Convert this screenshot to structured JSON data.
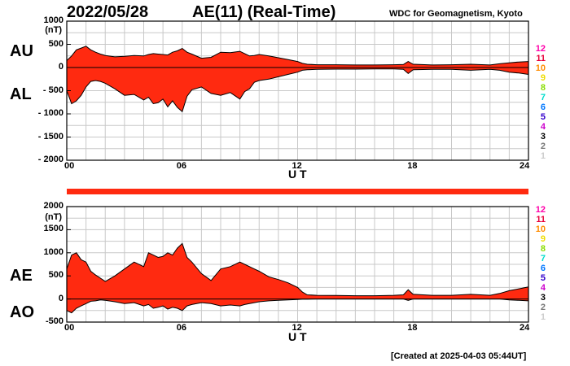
{
  "header": {
    "date": "2022/05/28",
    "title": "AE(11) (Real-Time)",
    "source": "WDC for Geomagnetism, Kyoto"
  },
  "footer": {
    "created": "[Created at 2025-04-03 05:44UT]"
  },
  "colors": {
    "fill": "#ff2a10",
    "line": "#000000",
    "grid": "#c8c8c8",
    "status_bar": "#ff2a10"
  },
  "legend": [
    {
      "label": "12",
      "color": "#ff00aa"
    },
    {
      "label": "11",
      "color": "#e8003a"
    },
    {
      "label": "10",
      "color": "#ff8c00"
    },
    {
      "label": "9",
      "color": "#eedd00"
    },
    {
      "label": "8",
      "color": "#88dd00"
    },
    {
      "label": "7",
      "color": "#00ddcc"
    },
    {
      "label": "6",
      "color": "#0077ff"
    },
    {
      "label": "5",
      "color": "#3300cc"
    },
    {
      "label": "4",
      "color": "#cc00cc"
    },
    {
      "label": "3",
      "color": "#000000"
    },
    {
      "label": "2",
      "color": "#777777"
    },
    {
      "label": "1",
      "color": "#cccccc"
    }
  ],
  "chart_data": [
    {
      "type": "area",
      "upper_label": "AU",
      "lower_label": "AL",
      "units": "(nT)",
      "xlabel": "U T",
      "xlim": [
        0,
        24
      ],
      "xticks": [
        0,
        6,
        12,
        18,
        24
      ],
      "xtick_labels": [
        "00",
        "06",
        "12",
        "18",
        "24"
      ],
      "ylim": [
        -2000,
        1000
      ],
      "yticks": [
        1000,
        500,
        0,
        -500,
        -1000,
        -1500,
        -2000
      ],
      "ytick_labels": [
        "1000",
        "500",
        "0",
        "- 500",
        "- 1000",
        "- 1500",
        "- 2000"
      ],
      "x": [
        0,
        0.25,
        0.5,
        0.75,
        1,
        1.25,
        1.5,
        1.75,
        2,
        2.5,
        3,
        3.5,
        4,
        4.25,
        4.5,
        4.75,
        5,
        5.25,
        5.5,
        5.75,
        6,
        6.25,
        6.5,
        7,
        7.5,
        8,
        8.5,
        9,
        9.25,
        9.5,
        9.75,
        10,
        10.5,
        11,
        11.5,
        12,
        12.25,
        12.5,
        13,
        14,
        15,
        16,
        17,
        17.5,
        17.75,
        18,
        19,
        20,
        21,
        22,
        22.5,
        23,
        23.5,
        24
      ],
      "upper": [
        150,
        250,
        380,
        420,
        460,
        380,
        330,
        290,
        260,
        230,
        240,
        260,
        250,
        280,
        300,
        290,
        280,
        270,
        330,
        360,
        410,
        330,
        290,
        200,
        220,
        330,
        320,
        350,
        300,
        250,
        260,
        280,
        250,
        210,
        170,
        130,
        90,
        70,
        60,
        60,
        55,
        55,
        60,
        65,
        130,
        70,
        55,
        60,
        70,
        55,
        80,
        100,
        120,
        130
      ],
      "lower": [
        -500,
        -780,
        -720,
        -600,
        -420,
        -300,
        -280,
        -300,
        -340,
        -460,
        -600,
        -580,
        -700,
        -640,
        -780,
        -760,
        -680,
        -850,
        -720,
        -860,
        -950,
        -620,
        -480,
        -420,
        -560,
        -600,
        -540,
        -680,
        -520,
        -460,
        -320,
        -280,
        -250,
        -200,
        -150,
        -100,
        -60,
        -50,
        -40,
        -35,
        -35,
        -30,
        -30,
        -40,
        -130,
        -50,
        -40,
        -40,
        -60,
        -40,
        -60,
        -100,
        -120,
        -150
      ]
    },
    {
      "type": "area",
      "upper_label": "AE",
      "lower_label": "AO",
      "units": "(nT)",
      "xlabel": "U T",
      "xlim": [
        0,
        24
      ],
      "xticks": [
        0,
        6,
        12,
        18,
        24
      ],
      "xtick_labels": [
        "00",
        "06",
        "12",
        "18",
        "24"
      ],
      "ylim": [
        -500,
        2000
      ],
      "yticks": [
        2000,
        1500,
        1000,
        500,
        0,
        -500
      ],
      "ytick_labels": [
        "2000",
        "1500",
        "1000",
        "500",
        "0",
        "-500"
      ],
      "x": [
        0,
        0.25,
        0.5,
        0.75,
        1,
        1.25,
        1.5,
        1.75,
        2,
        2.5,
        3,
        3.5,
        4,
        4.25,
        4.5,
        4.75,
        5,
        5.25,
        5.5,
        5.75,
        6,
        6.25,
        6.5,
        7,
        7.5,
        8,
        8.5,
        9,
        9.25,
        9.5,
        9.75,
        10,
        10.5,
        11,
        11.5,
        12,
        12.25,
        12.5,
        13,
        14,
        15,
        16,
        17,
        17.5,
        17.75,
        18,
        19,
        20,
        21,
        22,
        22.5,
        23,
        23.5,
        24
      ],
      "upper": [
        650,
        950,
        1000,
        850,
        800,
        600,
        520,
        450,
        380,
        500,
        650,
        800,
        700,
        1000,
        950,
        900,
        920,
        1000,
        950,
        1100,
        1200,
        900,
        800,
        550,
        400,
        650,
        700,
        800,
        750,
        700,
        650,
        600,
        480,
        420,
        350,
        250,
        150,
        90,
        80,
        75,
        70,
        70,
        80,
        90,
        200,
        100,
        80,
        80,
        100,
        80,
        120,
        180,
        220,
        260
      ],
      "lower": [
        -250,
        -300,
        -200,
        -150,
        -100,
        -50,
        -40,
        -20,
        -30,
        -60,
        -100,
        -80,
        -150,
        -120,
        -200,
        -180,
        -150,
        -220,
        -180,
        -200,
        -250,
        -150,
        -120,
        -80,
        -100,
        -150,
        -130,
        -150,
        -120,
        -100,
        -80,
        -60,
        -40,
        -30,
        -20,
        -10,
        -5,
        -5,
        0,
        0,
        0,
        0,
        0,
        0,
        -30,
        0,
        0,
        0,
        0,
        0,
        0,
        -20,
        -30,
        -40
      ]
    }
  ]
}
